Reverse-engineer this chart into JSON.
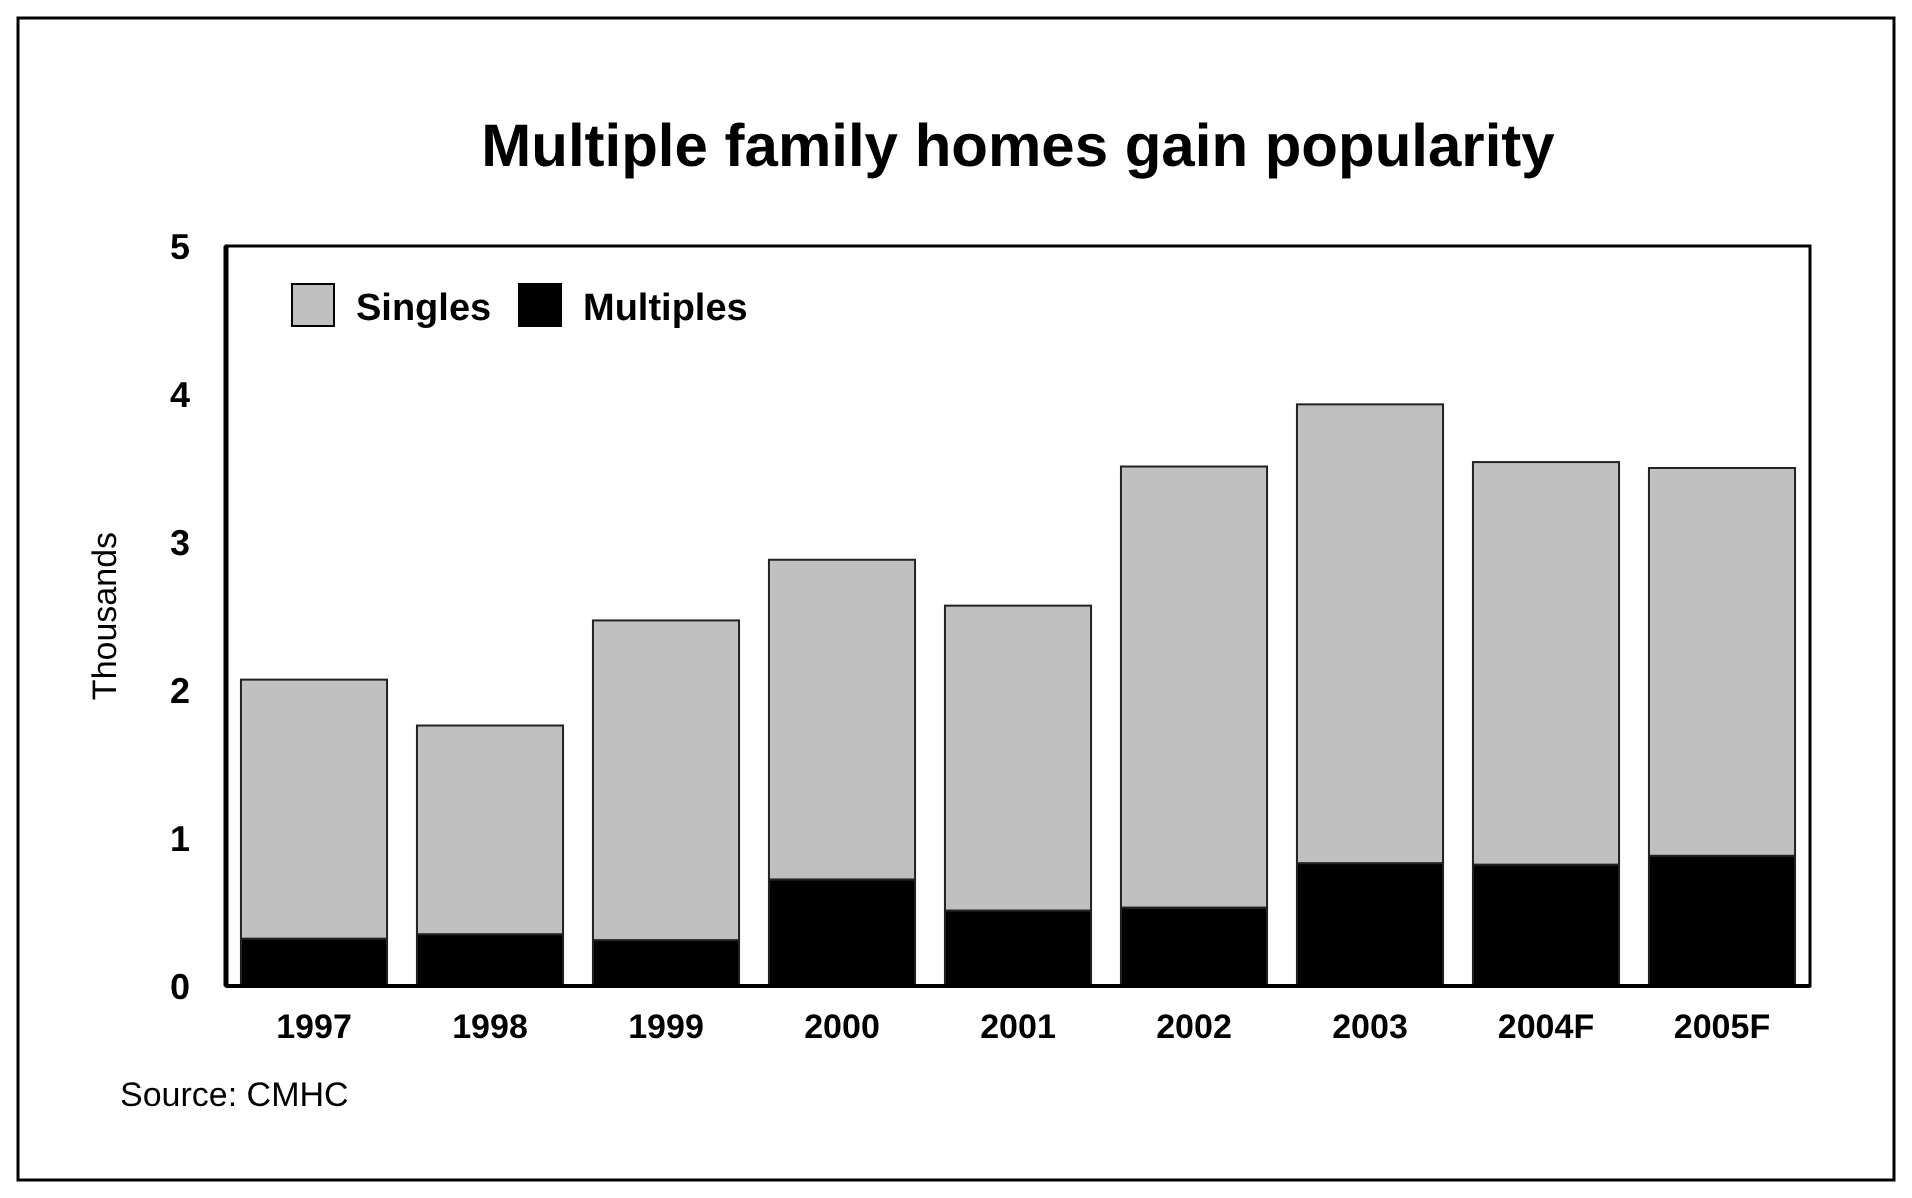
{
  "chart_data": {
    "type": "bar",
    "title": "Multiple family homes gain popularity",
    "ylabel": "Thousands",
    "categories": [
      "1997",
      "1998",
      "1999",
      "2000",
      "2001",
      "2002",
      "2003",
      "2004F",
      "2005F"
    ],
    "stacked": true,
    "series": [
      {
        "name": "Multiples",
        "color": "#000000",
        "values": [
          0.32,
          0.35,
          0.31,
          0.72,
          0.51,
          0.53,
          0.83,
          0.82,
          0.88
        ]
      },
      {
        "name": "Singles",
        "color": "#c0c0c0",
        "values": [
          1.75,
          1.41,
          2.16,
          2.16,
          2.06,
          2.98,
          3.1,
          2.72,
          2.62
        ]
      }
    ],
    "ylim": [
      0,
      5
    ],
    "yticks": [
      0,
      1,
      2,
      3,
      4,
      5
    ],
    "grid": false,
    "legend": "top left",
    "annotations": [
      "Source: CMHC"
    ]
  }
}
